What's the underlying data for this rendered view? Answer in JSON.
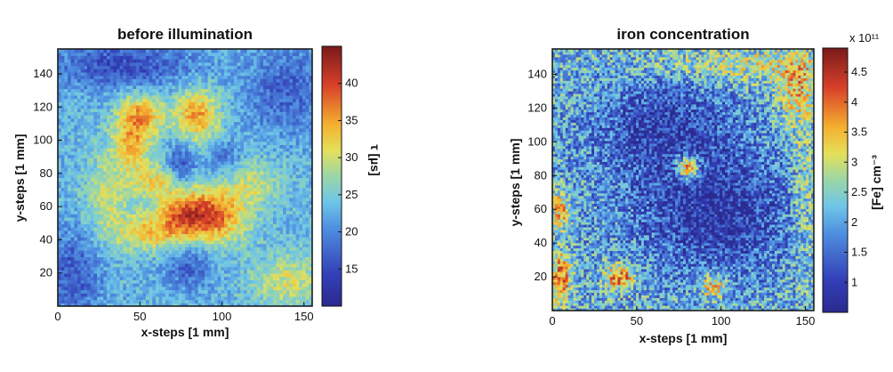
{
  "chart_data": [
    {
      "type": "heatmap",
      "title": "before illumination",
      "xlabel": "x-steps [1 mm]",
      "ylabel": "y-steps [1 mm]",
      "xlim": [
        0,
        155
      ],
      "ylim": [
        0,
        155
      ],
      "xticks": [
        0,
        50,
        100,
        150
      ],
      "yticks": [
        20,
        40,
        60,
        80,
        100,
        120,
        140
      ],
      "colorbar": {
        "label": "τ [µs]",
        "range": [
          10,
          45
        ],
        "ticks": [
          15,
          20,
          25,
          30,
          35,
          40
        ],
        "exponent": ""
      },
      "grid_res": 78,
      "base_value": 23,
      "noise_amplitude": 3,
      "hotspots": [
        {
          "x": 50,
          "y": 115,
          "sx": 10,
          "sy": 10,
          "v": 12
        },
        {
          "x": 85,
          "y": 115,
          "sx": 10,
          "sy": 12,
          "v": 12
        },
        {
          "x": 45,
          "y": 95,
          "sx": 8,
          "sy": 10,
          "v": 9
        },
        {
          "x": 60,
          "y": 75,
          "sx": 12,
          "sy": 8,
          "v": 8
        },
        {
          "x": 95,
          "y": 55,
          "sx": 14,
          "sy": 12,
          "v": 15
        },
        {
          "x": 75,
          "y": 55,
          "sx": 10,
          "sy": 10,
          "v": 10
        },
        {
          "x": 55,
          "y": 45,
          "sx": 14,
          "sy": 8,
          "v": 9
        },
        {
          "x": 120,
          "y": 75,
          "sx": 12,
          "sy": 10,
          "v": 6
        },
        {
          "x": 140,
          "y": 15,
          "sx": 16,
          "sy": 12,
          "v": 7
        },
        {
          "x": 30,
          "y": 65,
          "sx": 10,
          "sy": 20,
          "v": 6
        },
        {
          "x": 40,
          "y": 145,
          "sx": 30,
          "sy": 10,
          "v": -8
        },
        {
          "x": 140,
          "y": 130,
          "sx": 18,
          "sy": 18,
          "v": -6
        },
        {
          "x": 10,
          "y": 20,
          "sx": 12,
          "sy": 18,
          "v": -7
        },
        {
          "x": 75,
          "y": 85,
          "sx": 6,
          "sy": 10,
          "v": -8
        },
        {
          "x": 100,
          "y": 90,
          "sx": 8,
          "sy": 8,
          "v": -5
        },
        {
          "x": 80,
          "y": 25,
          "sx": 10,
          "sy": 10,
          "v": -6
        }
      ]
    },
    {
      "type": "heatmap",
      "title": "iron concentration",
      "xlabel": "x-steps [1 mm]",
      "ylabel": "y-steps [1 mm]",
      "xlim": [
        0,
        155
      ],
      "ylim": [
        0,
        155
      ],
      "xticks": [
        0,
        50,
        100,
        150
      ],
      "yticks": [
        20,
        40,
        60,
        80,
        100,
        120,
        140
      ],
      "colorbar": {
        "label": "[Fe] cm⁻³",
        "range": [
          0.5,
          4.9
        ],
        "ticks": [
          1,
          1.5,
          2,
          2.5,
          3,
          3.5,
          4,
          4.5
        ],
        "exponent": "x 10¹¹"
      },
      "grid_res": 100,
      "base_value": 2.2,
      "noise_amplitude": 0.9,
      "hotspots": [
        {
          "x": 80,
          "y": 85,
          "sx": 5,
          "sy": 5,
          "v": 2.5
        },
        {
          "x": 40,
          "y": 20,
          "sx": 6,
          "sy": 5,
          "v": 2.0
        },
        {
          "x": 5,
          "y": 20,
          "sx": 4,
          "sy": 10,
          "v": 2.0
        },
        {
          "x": 5,
          "y": 60,
          "sx": 4,
          "sy": 8,
          "v": 1.5
        },
        {
          "x": 95,
          "y": 15,
          "sx": 6,
          "sy": 5,
          "v": 1.6
        },
        {
          "x": 145,
          "y": 130,
          "sx": 8,
          "sy": 14,
          "v": 1.2
        },
        {
          "x": 110,
          "y": 145,
          "sx": 40,
          "sy": 8,
          "v": 0.8
        },
        {
          "x": 150,
          "y": 70,
          "sx": 6,
          "sy": 30,
          "v": 0.7
        },
        {
          "x": 65,
          "y": 110,
          "sx": 28,
          "sy": 22,
          "v": -0.9
        },
        {
          "x": 100,
          "y": 55,
          "sx": 28,
          "sy": 24,
          "v": -1.0
        },
        {
          "x": 80,
          "y": 75,
          "sx": 50,
          "sy": 45,
          "v": -0.5
        }
      ]
    }
  ]
}
